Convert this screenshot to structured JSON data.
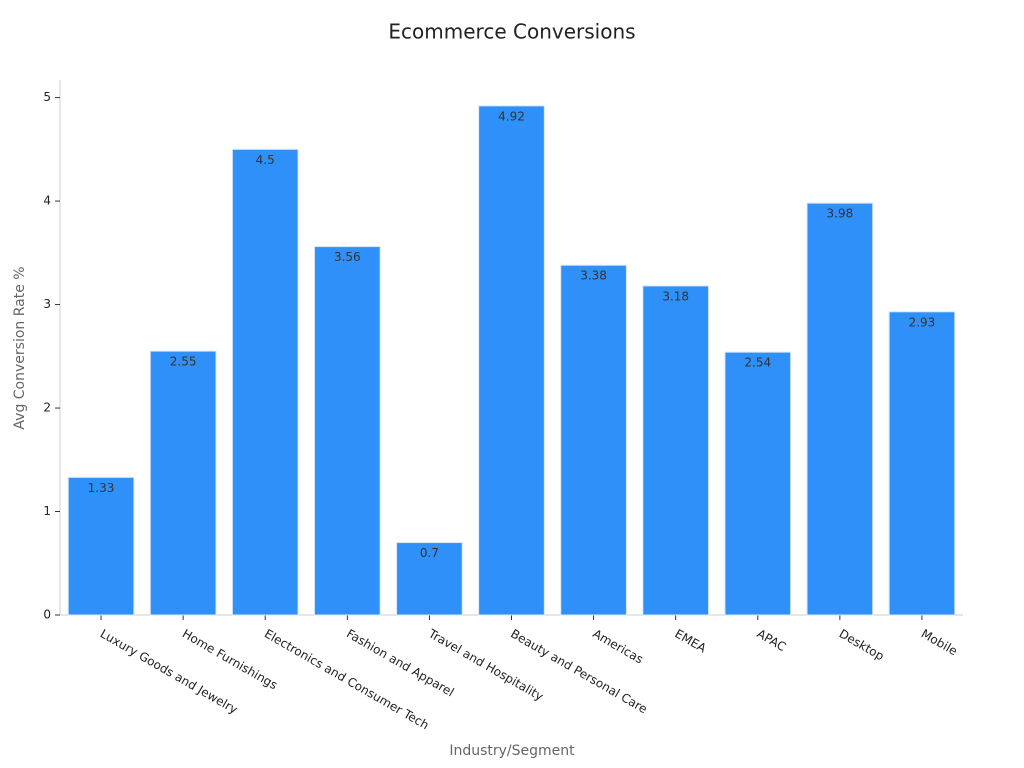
{
  "chart_data": {
    "type": "bar",
    "title": "Ecommerce Conversions",
    "x_label": "Industry/Segment",
    "y_label": "Avg Conversion Rate %",
    "categories": [
      "Luxury Goods and Jewelry",
      "Home Furnishings",
      "Electronics and Consumer Tech",
      "Fashion and Apparel",
      "Travel and Hospitality",
      "Beauty and Personal Care",
      "Americas",
      "EMEA",
      "APAC",
      "Desktop",
      "Mobile"
    ],
    "values": [
      1.33,
      2.55,
      4.5,
      3.56,
      0.7,
      4.92,
      3.38,
      3.18,
      2.54,
      3.98,
      2.93
    ],
    "color": "#2e90f8",
    "ylim": [
      0,
      5.17
    ],
    "yticks": [
      0,
      1,
      2,
      3,
      4,
      5
    ],
    "grid": false
  }
}
